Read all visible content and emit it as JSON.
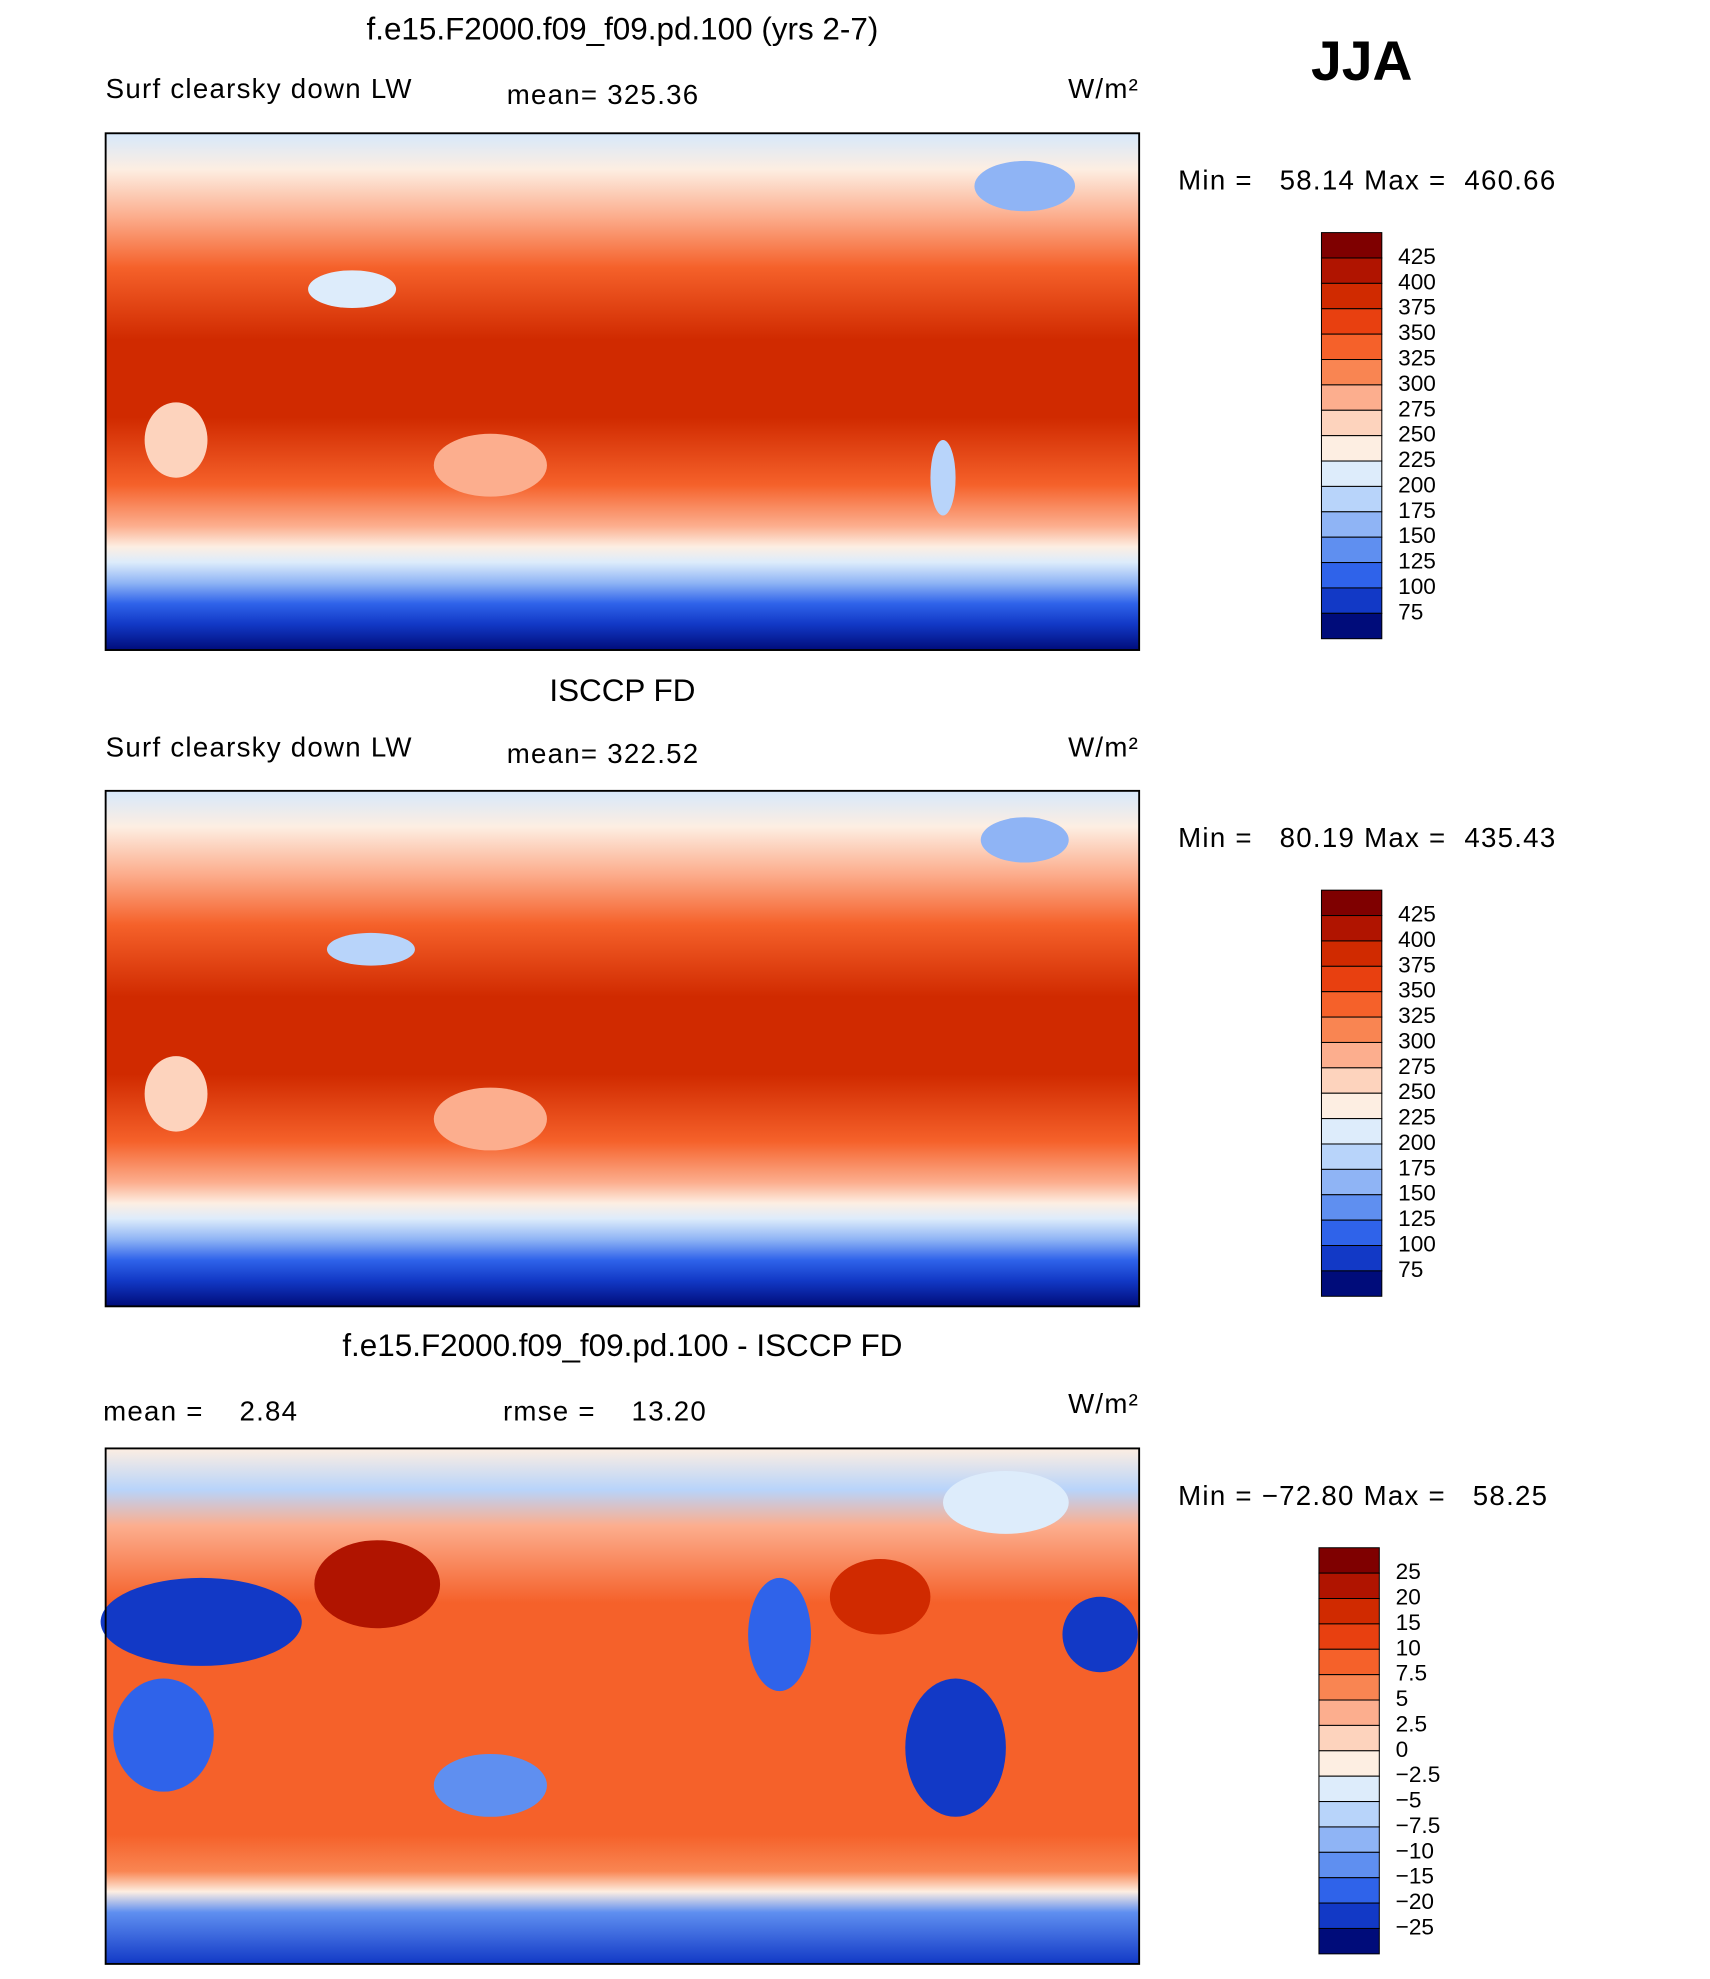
{
  "header": {
    "season": "JJA"
  },
  "panels": [
    {
      "title": "f.e15.F2000.f09_f09.pd.100 (yrs 2-7)",
      "left_label": "Surf clearsky down LW",
      "center_label": "mean= 325.36",
      "units": "W/m²",
      "range_label": "Min =   58.14 Max =  460.66",
      "colorbar": {
        "colors": [
          "#7f0000",
          "#b01400",
          "#d02a00",
          "#e84010",
          "#f5612a",
          "#f98552",
          "#fcae8e",
          "#fdd3bd",
          "#fdeee2",
          "#ddecfb",
          "#b8d4fa",
          "#8fb4f5",
          "#5f8ff0",
          "#2f63ea",
          "#1239c6",
          "#000c7a"
        ],
        "labels": [
          "425",
          "400",
          "375",
          "350",
          "325",
          "300",
          "275",
          "250",
          "225",
          "200",
          "175",
          "150",
          "125",
          "100",
          "75"
        ]
      }
    },
    {
      "title": "ISCCP FD",
      "left_label": "Surf clearsky down LW",
      "center_label": "mean= 322.52",
      "units": "W/m²",
      "range_label": "Min =   80.19 Max =  435.43",
      "colorbar": {
        "colors": [
          "#7f0000",
          "#b01400",
          "#d02a00",
          "#e84010",
          "#f5612a",
          "#f98552",
          "#fcae8e",
          "#fdd3bd",
          "#fdeee2",
          "#ddecfb",
          "#b8d4fa",
          "#8fb4f5",
          "#5f8ff0",
          "#2f63ea",
          "#1239c6",
          "#000c7a"
        ],
        "labels": [
          "425",
          "400",
          "375",
          "350",
          "325",
          "300",
          "275",
          "250",
          "225",
          "200",
          "175",
          "150",
          "125",
          "100",
          "75"
        ]
      }
    },
    {
      "title": "f.e15.F2000.f09_f09.pd.100 - ISCCP FD",
      "left_label": "mean =    2.84",
      "center_label": "rmse =    13.20",
      "units": "W/m²",
      "range_label": "Min = −72.80 Max =   58.25",
      "colorbar": {
        "colors": [
          "#7f0000",
          "#b01400",
          "#d02a00",
          "#e84010",
          "#f5612a",
          "#f98552",
          "#fcae8e",
          "#fdd3bd",
          "#fdeee2",
          "#ddecfb",
          "#b8d4fa",
          "#8fb4f5",
          "#5f8ff0",
          "#2f63ea",
          "#1239c6",
          "#000c7a"
        ],
        "labels": [
          "25",
          "20",
          "15",
          "10",
          "7.5",
          "5",
          "2.5",
          "0",
          "−2.5",
          "−5",
          "−7.5",
          "−10",
          "−15",
          "−20",
          "−25"
        ]
      }
    }
  ]
}
